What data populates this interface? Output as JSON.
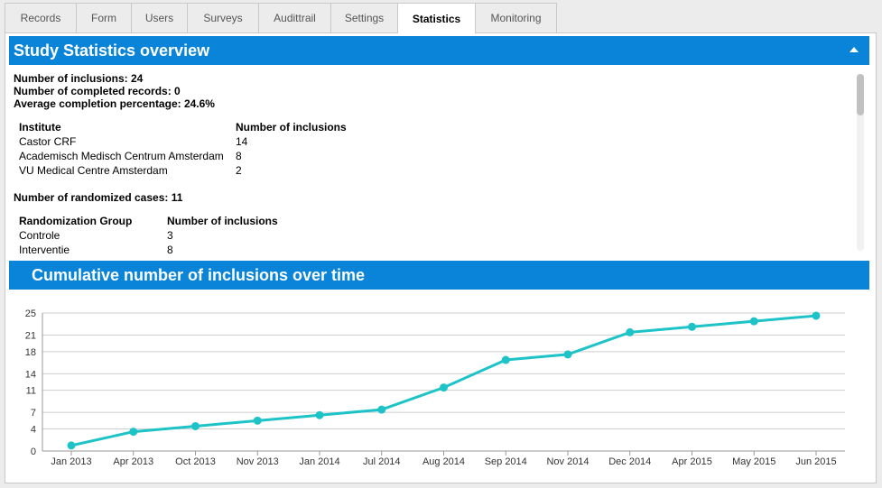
{
  "tabs": [
    {
      "label": "Records",
      "active": false
    },
    {
      "label": "Form",
      "active": false
    },
    {
      "label": "Users",
      "active": false
    },
    {
      "label": "Surveys",
      "active": false
    },
    {
      "label": "Audittrail",
      "active": false
    },
    {
      "label": "Settings",
      "active": false
    },
    {
      "label": "Statistics",
      "active": true
    },
    {
      "label": "Monitoring",
      "active": false
    }
  ],
  "overview": {
    "title": "Study Statistics overview",
    "num_inclusions": "Number of inclusions: 24",
    "num_completed": "Number of completed records: 0",
    "avg_completion": "Average completion percentage: 24.6%",
    "institutes": {
      "headers": [
        "Institute",
        "Number of inclusions"
      ],
      "rows": [
        [
          "Castor CRF",
          "14"
        ],
        [
          "Academisch Medisch Centrum Amsterdam",
          "8"
        ],
        [
          "VU Medical Centre Amsterdam",
          "2"
        ]
      ]
    },
    "num_randomized": "Number of randomized cases: 11",
    "randomization": {
      "headers": [
        "Randomization Group",
        "Number of inclusions"
      ],
      "rows": [
        [
          "Controle",
          "3"
        ],
        [
          "Interventie",
          "8"
        ]
      ]
    }
  },
  "chart_panel": {
    "title": "Cumulative number of inclusions over time"
  },
  "chart_data": {
    "type": "line",
    "title": "Cumulative number of inclusions over time",
    "xlabel": "",
    "ylabel": "",
    "categories": [
      "Jan 2013",
      "Apr 2013",
      "Oct 2013",
      "Nov 2013",
      "Jan 2014",
      "Jul 2014",
      "Aug 2014",
      "Sep 2014",
      "Nov 2014",
      "Dec 2014",
      "Apr 2015",
      "May 2015",
      "Jun 2015"
    ],
    "series": [
      {
        "values": [
          1,
          3.5,
          4.5,
          5.5,
          6.5,
          7.5,
          11.5,
          16.5,
          17.5,
          21.5,
          22.5,
          23.5,
          24.5
        ]
      }
    ],
    "yticks": [
      "0",
      "4",
      "7",
      "11",
      "14",
      "18",
      "21",
      "25"
    ],
    "ylim": [
      0,
      25
    ],
    "grid": true,
    "legend": "none",
    "color": "#1ec3c8"
  }
}
